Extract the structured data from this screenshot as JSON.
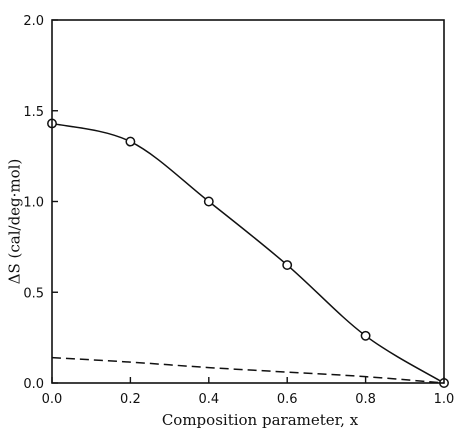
{
  "chart_data": {
    "type": "line",
    "xlabel": "Composition parameter, x",
    "ylabel": "ΔS (cal/deg·mol)",
    "xlim": [
      0,
      1.0
    ],
    "ylim": [
      0,
      2.0
    ],
    "x_ticks": [
      "0.0",
      "0.2",
      "0.4",
      "0.6",
      "0.8",
      "1.0"
    ],
    "y_ticks": [
      "0.0",
      "0.5",
      "1.0",
      "1.5",
      "2.0"
    ],
    "grid": false,
    "series": [
      {
        "style": "solid-with-open-circles",
        "points": [
          {
            "x": 0.0,
            "y": 1.43
          },
          {
            "x": 0.2,
            "y": 1.33
          },
          {
            "x": 0.4,
            "y": 1.0
          },
          {
            "x": 0.6,
            "y": 0.65
          },
          {
            "x": 0.8,
            "y": 0.26
          },
          {
            "x": 1.0,
            "y": 0.0
          }
        ]
      },
      {
        "style": "dashed",
        "points": [
          {
            "x": 0.0,
            "y": 0.14
          },
          {
            "x": 0.2,
            "y": 0.115
          },
          {
            "x": 0.4,
            "y": 0.085
          },
          {
            "x": 0.6,
            "y": 0.06
          },
          {
            "x": 0.8,
            "y": 0.035
          },
          {
            "x": 1.0,
            "y": 0.0
          }
        ]
      }
    ]
  }
}
